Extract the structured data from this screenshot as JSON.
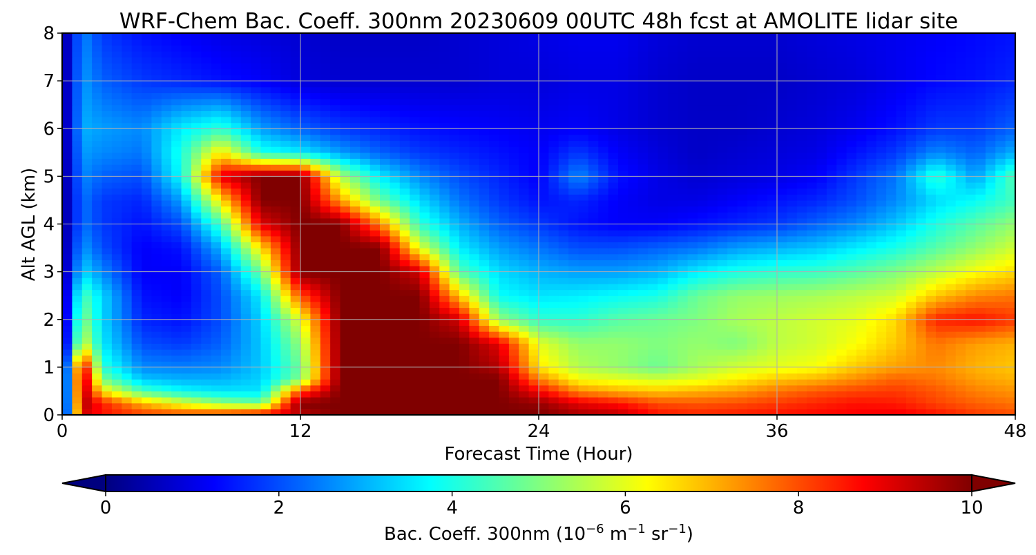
{
  "chart_data": {
    "type": "heatmap",
    "title": "WRF-Chem Bac. Coeff. 300nm  20230609 00UTC 48h fcst at AMOLITE lidar site",
    "xlabel": "Forecast Time (Hour)",
    "ylabel": "Alt AGL (km)",
    "xlim": [
      0,
      48
    ],
    "ylim": [
      0,
      8
    ],
    "x_ticks": [
      "0",
      "12",
      "24",
      "36",
      "48"
    ],
    "y_ticks": [
      "0",
      "1",
      "2",
      "3",
      "4",
      "5",
      "6",
      "7",
      "8"
    ],
    "grid": true,
    "colormap": "jet",
    "colorbar": {
      "label_base": "Bac. Coeff. 300nm  (10",
      "label_exp1": "−6",
      "label_mid": " m",
      "label_exp2": "−1",
      "label_mid2": " sr",
      "label_exp3": "−1",
      "label_end": ")",
      "range": [
        0,
        10
      ],
      "extend": "both",
      "ticks": [
        "0",
        "2",
        "4",
        "6",
        "8",
        "10"
      ],
      "orientation": "horizontal",
      "placement": "bottom"
    },
    "x": [
      0,
      1,
      2,
      4,
      6,
      8,
      10,
      12,
      14,
      16,
      18,
      20,
      22,
      24,
      26,
      28,
      30,
      32,
      34,
      36,
      38,
      40,
      42,
      44,
      46,
      48
    ],
    "y": [
      0,
      0.25,
      0.5,
      0.75,
      1,
      1.5,
      2,
      2.5,
      3,
      3.5,
      4,
      4.5,
      5,
      5.5,
      6,
      7,
      8
    ],
    "z": [
      [
        0,
        9.2,
        8.6,
        8.2,
        8.1,
        8.3,
        8.8,
        9.4,
        10,
        10,
        10,
        10,
        10,
        10,
        9.6,
        9.4,
        8.6,
        8.4,
        8.5,
        8.6,
        8.7,
        8.8,
        8.9,
        8.6,
        8.2,
        8.0
      ],
      [
        0,
        9.6,
        8.5,
        7.0,
        6.0,
        5.2,
        4.8,
        10,
        10,
        10,
        10,
        10,
        10,
        9.8,
        9.0,
        8.6,
        8.0,
        7.9,
        8.0,
        8.2,
        8.4,
        8.6,
        8.5,
        8.1,
        7.8,
        7.6
      ],
      [
        0,
        9.8,
        6.5,
        4.5,
        3.8,
        3.5,
        3.5,
        8.0,
        10,
        10,
        10,
        10,
        10,
        8.8,
        7.4,
        7.0,
        6.8,
        7.0,
        7.2,
        7.6,
        7.9,
        8.1,
        8.2,
        7.9,
        7.5,
        7.3
      ],
      [
        0,
        9.9,
        5.0,
        3.2,
        3.0,
        3.0,
        3.3,
        5.0,
        10,
        10,
        10,
        10,
        10,
        7.5,
        6.2,
        6.0,
        5.8,
        6.0,
        6.4,
        6.8,
        7.0,
        7.4,
        7.8,
        7.6,
        7.2,
        7.0
      ],
      [
        0,
        9.5,
        4.2,
        2.6,
        2.5,
        2.6,
        3.2,
        4.8,
        10,
        10,
        10,
        10,
        9.5,
        6.5,
        5.5,
        5.2,
        4.8,
        5.4,
        5.8,
        6.0,
        6.2,
        6.8,
        7.2,
        7.4,
        7.0,
        6.8
      ],
      [
        0,
        6.0,
        3.6,
        2.0,
        1.8,
        2.2,
        3.2,
        5.2,
        10,
        10,
        10,
        10,
        9.0,
        6.0,
        5.2,
        5.2,
        5.0,
        5.2,
        5.0,
        5.6,
        5.8,
        6.2,
        6.8,
        7.6,
        7.2,
        7.0
      ],
      [
        0,
        5.2,
        3.4,
        1.6,
        1.4,
        2.0,
        3.3,
        6.0,
        10,
        10,
        10,
        9.2,
        5.2,
        4.2,
        4.2,
        4.6,
        4.8,
        5.0,
        5.4,
        5.6,
        5.8,
        6.0,
        6.6,
        8.4,
        8.6,
        8.2
      ],
      [
        0,
        4.6,
        3.4,
        1.4,
        1.2,
        2.0,
        3.6,
        8.0,
        10,
        10,
        10,
        6.8,
        3.8,
        3.5,
        3.6,
        3.8,
        4.0,
        4.8,
        5.2,
        5.3,
        5.4,
        5.6,
        5.8,
        6.8,
        7.4,
        7.6
      ],
      [
        0,
        3.4,
        2.6,
        1.2,
        1.2,
        2.2,
        4.8,
        10,
        10,
        10,
        9.2,
        4.6,
        3.4,
        3.0,
        2.8,
        2.8,
        3.0,
        3.6,
        4.0,
        4.2,
        4.3,
        4.6,
        5.0,
        5.6,
        6.2,
        6.6
      ],
      [
        0,
        2.8,
        2.0,
        1.2,
        1.4,
        3.0,
        6.5,
        10,
        10,
        10,
        6.0,
        3.6,
        2.8,
        2.4,
        2.0,
        2.0,
        2.2,
        2.4,
        2.8,
        3.0,
        3.2,
        3.6,
        4.0,
        4.6,
        5.2,
        5.8
      ],
      [
        0,
        2.4,
        1.8,
        1.4,
        2.0,
        4.4,
        9.0,
        10,
        10,
        7.5,
        4.2,
        3.0,
        2.2,
        1.8,
        1.4,
        1.2,
        1.2,
        1.4,
        1.6,
        1.8,
        2.2,
        2.6,
        3.2,
        4.0,
        4.6,
        5.2
      ],
      [
        0,
        2.4,
        1.8,
        1.6,
        2.8,
        6.5,
        10,
        10,
        7.2,
        4.8,
        3.4,
        2.4,
        1.8,
        1.4,
        1.6,
        1.2,
        1.0,
        1.0,
        1.2,
        1.4,
        1.6,
        2.0,
        2.6,
        3.4,
        3.8,
        4.4
      ],
      [
        0,
        2.6,
        2.2,
        2.0,
        3.8,
        9.0,
        10,
        10,
        5.5,
        3.6,
        2.6,
        2.0,
        1.6,
        1.2,
        2.6,
        1.4,
        1.0,
        0.8,
        0.9,
        1.0,
        1.2,
        1.8,
        2.4,
        4.2,
        2.8,
        4.6
      ],
      [
        0,
        2.8,
        2.6,
        2.4,
        4.0,
        6.5,
        4.0,
        3.6,
        2.8,
        2.2,
        1.8,
        1.6,
        1.4,
        1.2,
        1.8,
        1.2,
        0.9,
        0.7,
        0.8,
        0.9,
        1.0,
        1.4,
        1.8,
        2.6,
        2.2,
        3.0
      ],
      [
        0,
        3.0,
        2.8,
        2.6,
        3.6,
        4.2,
        2.8,
        2.2,
        1.8,
        1.6,
        1.4,
        1.3,
        1.2,
        1.1,
        1.2,
        1.0,
        0.8,
        0.7,
        0.7,
        0.8,
        0.9,
        1.1,
        1.4,
        1.8,
        1.8,
        2.2
      ],
      [
        0,
        2.8,
        2.2,
        1.8,
        1.6,
        1.4,
        1.2,
        0.9,
        0.8,
        0.8,
        0.8,
        0.8,
        0.9,
        0.9,
        1.0,
        1.0,
        0.8,
        0.7,
        0.7,
        0.7,
        0.8,
        0.9,
        1.1,
        1.3,
        1.4,
        1.6
      ],
      [
        0,
        2.6,
        1.8,
        1.4,
        1.2,
        1.0,
        0.9,
        0.8,
        0.7,
        0.7,
        0.7,
        0.8,
        0.9,
        1.0,
        1.1,
        1.1,
        0.9,
        0.8,
        0.8,
        0.8,
        0.9,
        1.0,
        1.1,
        1.2,
        1.3,
        1.4
      ]
    ]
  }
}
